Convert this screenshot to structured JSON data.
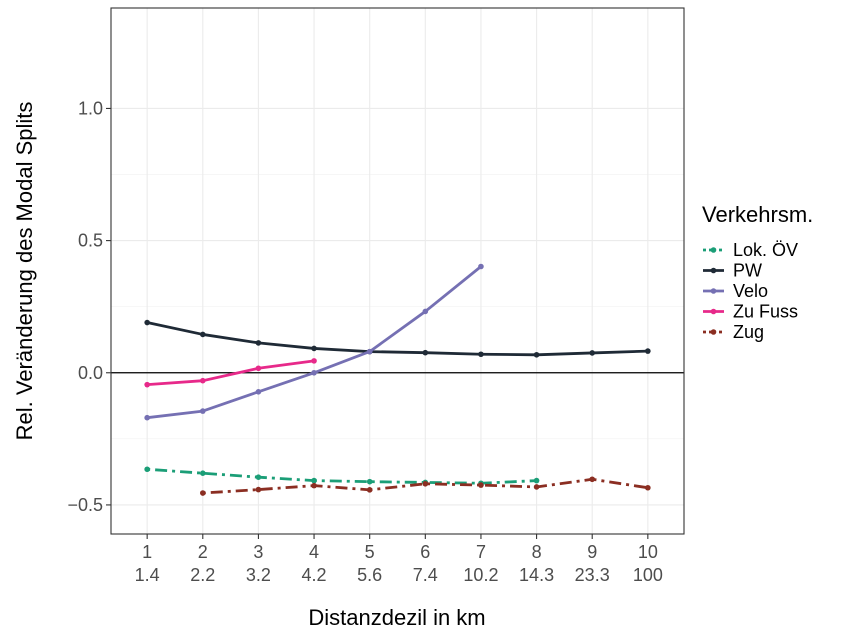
{
  "chart_data": {
    "type": "line",
    "xlabel": "Distanzdezil in km",
    "ylabel": "Rel. Veränderung des Modal Splits",
    "x": [
      1,
      2,
      3,
      4,
      5,
      6,
      7,
      8,
      9,
      10
    ],
    "x_tick_labels": [
      {
        "decile": "1",
        "km": "1.4"
      },
      {
        "decile": "2",
        "km": "2.2"
      },
      {
        "decile": "3",
        "km": "3.2"
      },
      {
        "decile": "4",
        "km": "4.2"
      },
      {
        "decile": "5",
        "km": "5.6"
      },
      {
        "decile": "6",
        "km": "7.4"
      },
      {
        "decile": "7",
        "km": "10.2"
      },
      {
        "decile": "8",
        "km": "14.3"
      },
      {
        "decile": "9",
        "km": "23.3"
      },
      {
        "decile": "10",
        "km": "100"
      }
    ],
    "y_ticks": [
      -0.5,
      0.0,
      0.5,
      1.0
    ],
    "y_tick_labels": [
      "−0.5",
      "0.0",
      "0.5",
      "1.0"
    ],
    "xlim": [
      0.35,
      10.65
    ],
    "ylim": [
      -0.61,
      1.38
    ],
    "hline": 0,
    "grid": true,
    "legend": {
      "title": "Verkehrsm.",
      "placement": "right"
    },
    "series": [
      {
        "name": "Lok. ÖV",
        "color": "#1b9e77",
        "dash": "dotdash",
        "x": [
          1,
          2,
          3,
          4,
          5,
          6,
          7,
          8
        ],
        "y": [
          -0.365,
          -0.38,
          -0.395,
          -0.408,
          -0.412,
          -0.415,
          -0.418,
          -0.408
        ]
      },
      {
        "name": "PW",
        "color": "#1f2a36",
        "dash": "solid",
        "x": [
          1,
          2,
          3,
          4,
          5,
          6,
          7,
          8,
          9,
          10
        ],
        "y": [
          0.19,
          0.145,
          0.113,
          0.092,
          0.08,
          0.076,
          0.07,
          0.068,
          0.075,
          0.082
        ]
      },
      {
        "name": "Velo",
        "color": "#7570b3",
        "dash": "solid",
        "x": [
          1,
          2,
          3,
          4,
          5,
          6,
          7
        ],
        "y": [
          -0.17,
          -0.145,
          -0.072,
          0.0,
          0.08,
          0.232,
          0.402
        ]
      },
      {
        "name": "Zu Fuss",
        "color": "#e7298a",
        "dash": "solid",
        "x": [
          1,
          2,
          3,
          4
        ],
        "y": [
          -0.045,
          -0.03,
          0.017,
          0.045
        ]
      },
      {
        "name": "Zug",
        "color": "#8b2e22",
        "dash": "dotdash",
        "x": [
          2,
          3,
          4,
          5,
          6,
          7,
          8,
          9,
          10
        ],
        "y": [
          -0.455,
          -0.442,
          -0.427,
          -0.443,
          -0.42,
          -0.425,
          -0.432,
          -0.403,
          -0.435
        ]
      }
    ]
  }
}
